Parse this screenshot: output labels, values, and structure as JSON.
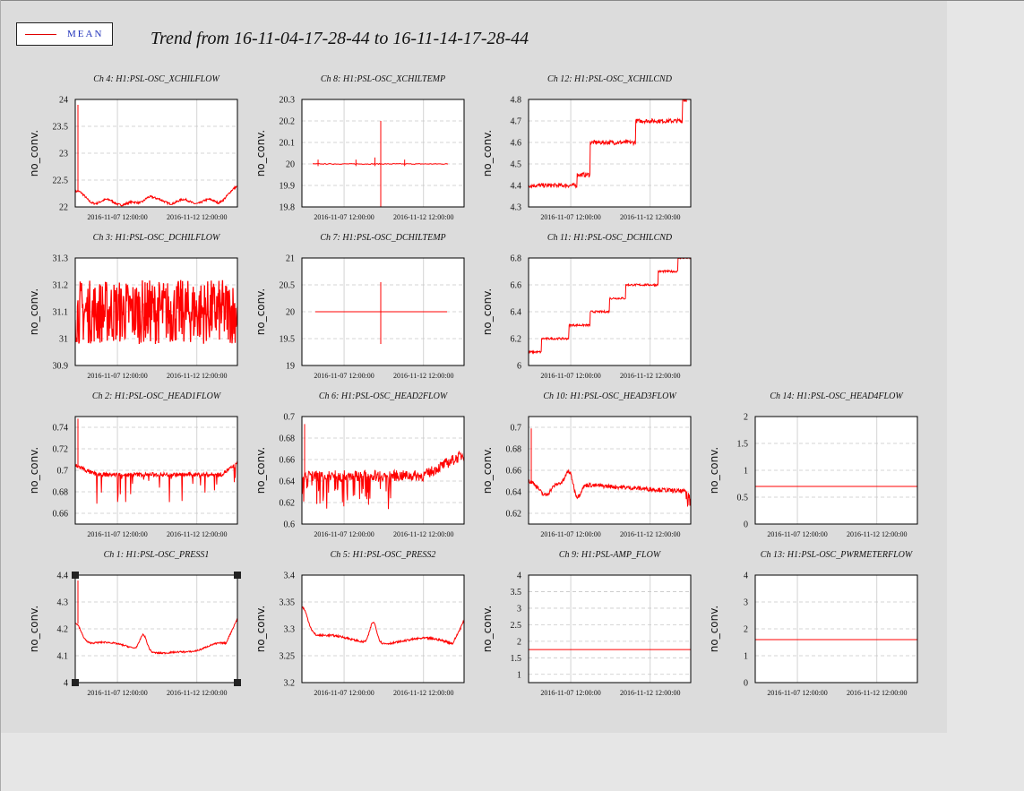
{
  "title": "Trend from 16-11-04-17-28-44 to 16-11-14-17-28-44",
  "legend": {
    "label": "MEAN",
    "color": "#e00000"
  },
  "colors": {
    "series": "#ff0000",
    "frame_bg": "#dcdcdc",
    "plot_bg": "#ffffff"
  },
  "chart_data": [
    {
      "type": "line",
      "title": "Ch 4: H1:PSL-OSC_XCHILFLOW",
      "ylabel": "no_conv.",
      "ylim": [
        22,
        24
      ],
      "yticks": [
        "22",
        "22.5",
        "23",
        "23.5",
        "24"
      ],
      "xticks": [
        "2016-11-07 12:00:00",
        "2016-11-12 12:00:00"
      ],
      "series": [
        {
          "name": "MEAN",
          "shape": "xchilflow"
        }
      ]
    },
    {
      "type": "line",
      "title": "Ch 8: H1:PSL-OSC_XCHILTEMP",
      "ylabel": "no_conv.",
      "ylim": [
        19.8,
        20.3
      ],
      "yticks": [
        "19.8",
        "19.9",
        "20",
        "20.1",
        "20.2",
        "20.3"
      ],
      "xticks": [
        "2016-11-07 12:00:00",
        "2016-11-12 12:00:00"
      ],
      "series": [
        {
          "name": "MEAN",
          "shape": "xchiltemp"
        }
      ]
    },
    {
      "type": "line",
      "title": "Ch 12: H1:PSL-OSC_XCHILCND",
      "ylabel": "no_conv.",
      "ylim": [
        4.3,
        4.8
      ],
      "yticks": [
        "4.3",
        "4.4",
        "4.5",
        "4.6",
        "4.7",
        "4.8"
      ],
      "xticks": [
        "2016-11-07 12:00:00",
        "2016-11-12 12:00:00"
      ],
      "series": [
        {
          "name": "MEAN",
          "shape": "xchilcnd"
        }
      ]
    },
    {
      "type": "line",
      "title": "Ch 3: H1:PSL-OSC_DCHILFLOW",
      "ylabel": "no_conv.",
      "ylim": [
        30.9,
        31.3
      ],
      "yticks": [
        "30.9",
        "31",
        "31.1",
        "31.2",
        "31.3"
      ],
      "xticks": [
        "2016-11-07 12:00:00",
        "2016-11-12 12:00:00"
      ],
      "series": [
        {
          "name": "MEAN",
          "shape": "dchilflow"
        }
      ]
    },
    {
      "type": "line",
      "title": "Ch 7: H1:PSL-OSC_DCHILTEMP",
      "ylabel": "no_conv.",
      "ylim": [
        19,
        21
      ],
      "yticks": [
        "19",
        "19.5",
        "20",
        "20.5",
        "21"
      ],
      "xticks": [
        "2016-11-07 12:00:00",
        "2016-11-12 12:00:00"
      ],
      "series": [
        {
          "name": "MEAN",
          "shape": "dchiltemp"
        }
      ]
    },
    {
      "type": "line",
      "title": "Ch 11: H1:PSL-OSC_DCHILCND",
      "ylabel": "no_conv.",
      "ylim": [
        6,
        6.8
      ],
      "yticks": [
        "6",
        "6.2",
        "6.4",
        "6.6",
        "6.8"
      ],
      "xticks": [
        "2016-11-07 12:00:00",
        "2016-11-12 12:00:00"
      ],
      "series": [
        {
          "name": "MEAN",
          "shape": "dchilcnd"
        }
      ]
    },
    {
      "type": "line",
      "title": "Ch 2: H1:PSL-OSC_HEAD1FLOW",
      "ylabel": "no_conv.",
      "ylim": [
        0.65,
        0.75
      ],
      "yticks": [
        "0.66",
        "0.68",
        "0.7",
        "0.72",
        "0.74"
      ],
      "xticks": [
        "2016-11-07 12:00:00",
        "2016-11-12 12:00:00"
      ],
      "series": [
        {
          "name": "MEAN",
          "shape": "head1"
        }
      ]
    },
    {
      "type": "line",
      "title": "Ch 6: H1:PSL-OSC_HEAD2FLOW",
      "ylabel": "no_conv.",
      "ylim": [
        0.6,
        0.7
      ],
      "yticks": [
        "0.6",
        "0.62",
        "0.64",
        "0.66",
        "0.68",
        "0.7"
      ],
      "xticks": [
        "2016-11-07 12:00:00",
        "2016-11-12 12:00:00"
      ],
      "series": [
        {
          "name": "MEAN",
          "shape": "head2"
        }
      ]
    },
    {
      "type": "line",
      "title": "Ch 10: H1:PSL-OSC_HEAD3FLOW",
      "ylabel": "no_conv.",
      "ylim": [
        0.61,
        0.71
      ],
      "yticks": [
        "0.62",
        "0.64",
        "0.66",
        "0.68",
        "0.7"
      ],
      "xticks": [
        "2016-11-07 12:00:00",
        "2016-11-12 12:00:00"
      ],
      "series": [
        {
          "name": "MEAN",
          "shape": "head3"
        }
      ]
    },
    {
      "type": "line",
      "title": "Ch 14: H1:PSL-OSC_HEAD4FLOW",
      "ylabel": "no_conv.",
      "ylim": [
        0,
        2
      ],
      "yticks": [
        "0",
        "0.5",
        "1",
        "1.5",
        "2"
      ],
      "xticks": [
        "2016-11-07 12:00:00",
        "2016-11-12 12:00:00"
      ],
      "series": [
        {
          "name": "MEAN",
          "shape": "flat",
          "value": 0.7
        }
      ]
    },
    {
      "type": "line",
      "title": "Ch 1: H1:PSL-OSC_PRESS1",
      "ylabel": "no_conv.",
      "ylim": [
        4,
        4.4
      ],
      "yticks": [
        "4",
        "4.1",
        "4.2",
        "4.3",
        "4.4"
      ],
      "xticks": [
        "2016-11-07 12:00:00",
        "2016-11-12 12:00:00"
      ],
      "selected": true,
      "series": [
        {
          "name": "MEAN",
          "shape": "press1"
        }
      ]
    },
    {
      "type": "line",
      "title": "Ch 5: H1:PSL-OSC_PRESS2",
      "ylabel": "no_conv.",
      "ylim": [
        3.2,
        3.4
      ],
      "yticks": [
        "3.2",
        "3.25",
        "3.3",
        "3.35",
        "3.4"
      ],
      "xticks": [
        "2016-11-07 12:00:00",
        "2016-11-12 12:00:00"
      ],
      "series": [
        {
          "name": "MEAN",
          "shape": "press2"
        }
      ]
    },
    {
      "type": "line",
      "title": "Ch 9: H1:PSL-AMP_FLOW",
      "ylabel": "no_conv.",
      "ylim": [
        0.75,
        4
      ],
      "yticks": [
        "1",
        "1.5",
        "2",
        "2.5",
        "3",
        "3.5",
        "4"
      ],
      "xticks": [
        "2016-11-07 12:00:00",
        "2016-11-12 12:00:00"
      ],
      "series": [
        {
          "name": "MEAN",
          "shape": "flat",
          "value": 1.75
        }
      ]
    },
    {
      "type": "line",
      "title": "Ch 13: H1:PSL-OSC_PWRMETERFLOW",
      "ylabel": "no_conv.",
      "ylim": [
        0,
        4
      ],
      "yticks": [
        "0",
        "1",
        "2",
        "3",
        "4"
      ],
      "xticks": [
        "2016-11-07 12:00:00",
        "2016-11-12 12:00:00"
      ],
      "series": [
        {
          "name": "MEAN",
          "shape": "flat",
          "value": 1.6
        }
      ]
    }
  ]
}
